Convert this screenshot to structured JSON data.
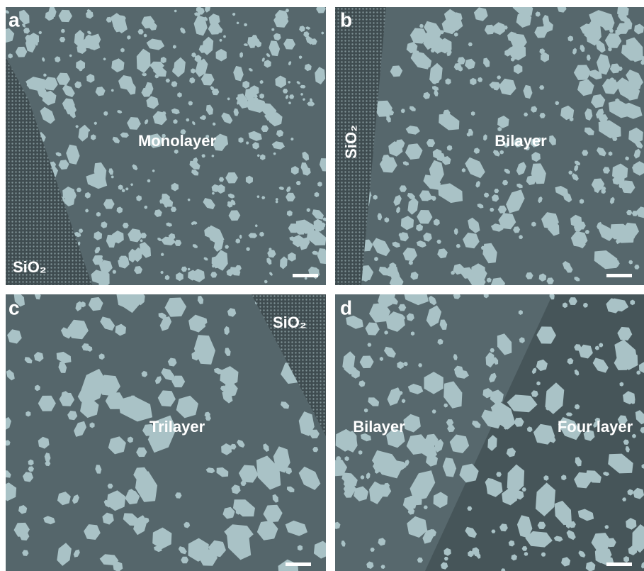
{
  "panels": [
    {
      "label": "a",
      "texts": [
        "Monolayer",
        "SiO₂"
      ]
    },
    {
      "label": "b",
      "texts": [
        "SiO₂",
        "Bilayer"
      ]
    },
    {
      "label": "c",
      "texts": [
        "Trilayer",
        "SiO₂"
      ]
    },
    {
      "label": "d",
      "texts": [
        "Bilayer",
        "Four layer"
      ]
    }
  ]
}
